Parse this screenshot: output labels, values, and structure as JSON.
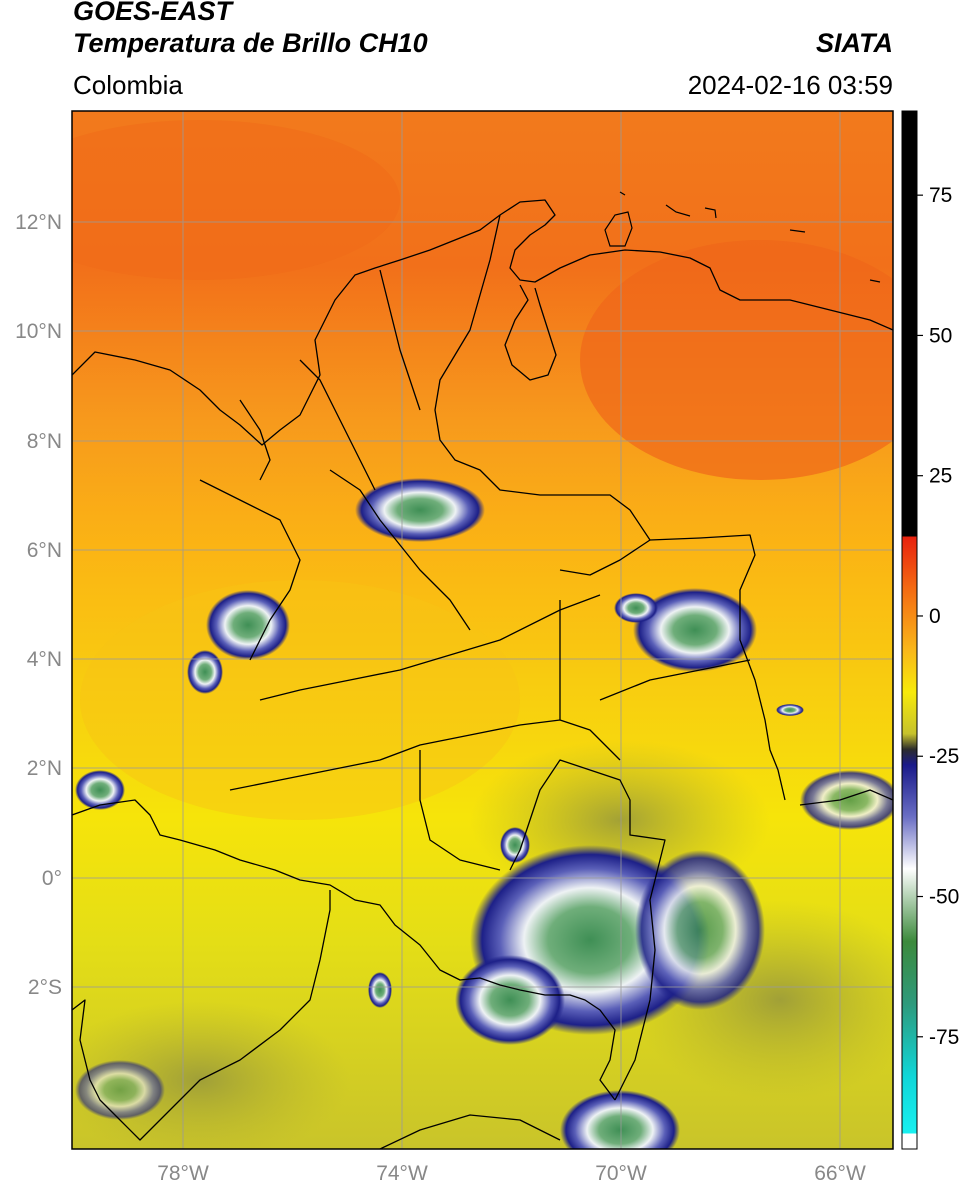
{
  "header": {
    "satellite": "GOES-EAST",
    "product": "Temperatura de Brillo CH10",
    "region": "Colombia",
    "agency": "SIATA",
    "datetime": "2024-02-16 03:59"
  },
  "map": {
    "lat_labels": [
      "12°N",
      "10°N",
      "8°N",
      "6°N",
      "4°N",
      "2°N",
      "0°",
      "2°S"
    ],
    "lon_labels": [
      "78°W",
      "74°W",
      "70°W",
      "66°W"
    ],
    "colors": {
      "warm_top": "#f0641a",
      "mid": "#f9a41c",
      "cool": "#f5e60a",
      "olive": "#c7c22a",
      "cloud_blue": "#2a2e9a",
      "cloud_white": "#e8eef0",
      "cloud_green": "#4a9a5a",
      "border": "#000000",
      "grid": "#9a9a9a"
    }
  },
  "colorbar": {
    "tick_labels": [
      "75",
      "50",
      "25",
      "0",
      "-25",
      "-50",
      "-75"
    ],
    "tick_values": [
      75,
      50,
      25,
      0,
      -25,
      -50,
      -75
    ],
    "range": [
      -95,
      90
    ]
  }
}
